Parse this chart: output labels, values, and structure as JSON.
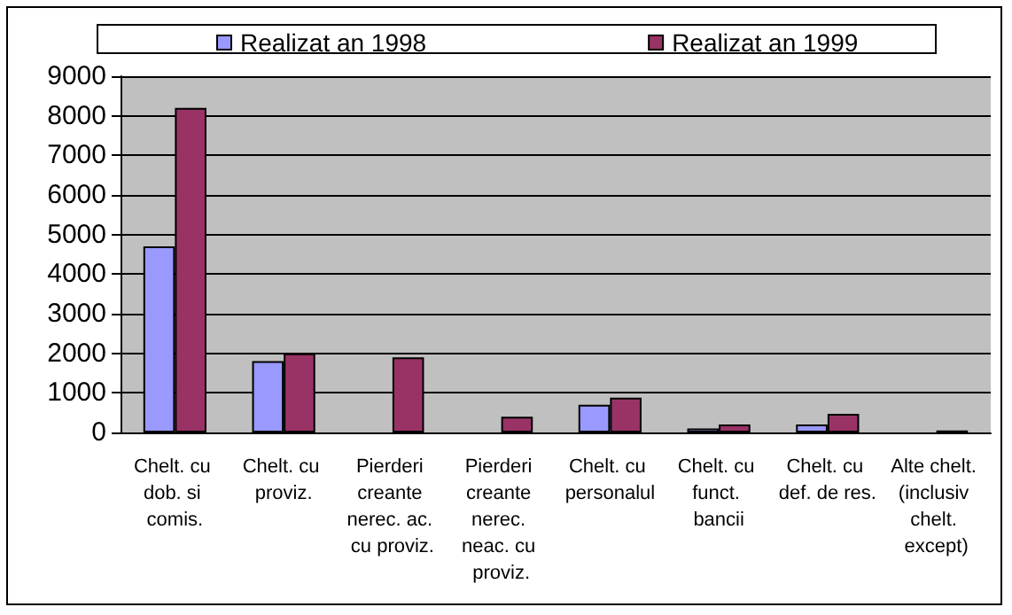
{
  "chart_data": {
    "type": "bar",
    "categories": [
      "Chelt. cu dob. si comis.",
      "Chelt. cu proviz.",
      "Pierderi creante nerec. ac. cu proviz.",
      "Pierderi creante nerec. neac. cu proviz.",
      "Chelt. cu personalul",
      "Chelt. cu funct. bancii",
      "Chelt. cu def. de res.",
      "Alte chelt. (inclusiv chelt. except)"
    ],
    "series": [
      {
        "name": "Realizat an 1998",
        "color": "#9999ff",
        "values": [
          4700,
          1800,
          0,
          0,
          700,
          100,
          200,
          0
        ]
      },
      {
        "name": "Realizat an 1999",
        "color": "#993366",
        "values": [
          8200,
          2000,
          1900,
          400,
          880,
          200,
          470,
          50
        ]
      }
    ],
    "ylim": [
      0,
      9000
    ],
    "yticks": [
      0,
      1000,
      2000,
      3000,
      4000,
      5000,
      6000,
      7000,
      8000,
      9000
    ],
    "grid": "y",
    "legend": "top"
  }
}
